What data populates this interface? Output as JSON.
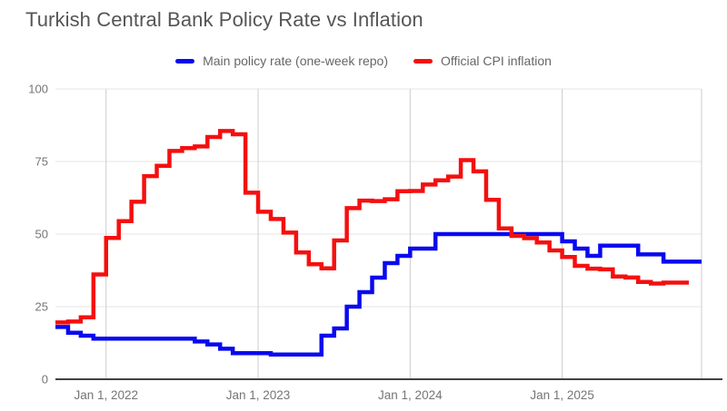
{
  "header": {
    "title": "Turkish Central Bank Policy Rate vs Inflation"
  },
  "colors": {
    "policy_line": "#0909f0",
    "cpi_line": "#f50f0f",
    "title_text": "#555555",
    "legend_text": "#666666",
    "axis_label_text": "#757575",
    "h_gridline": "#e6e6e6",
    "v_gridline": "#cccccc",
    "baseline": "#424242",
    "background": "#ffffff"
  },
  "chart_data": {
    "type": "line",
    "stepped": true,
    "title": "Turkish Central Bank Policy Rate vs Inflation",
    "xlabel": "",
    "ylabel": "",
    "grid": true,
    "legend_position": "top",
    "ylim": [
      0,
      100
    ],
    "y_ticks": [
      0,
      25,
      50,
      75,
      100
    ],
    "y_tick_labels": [
      "0",
      "25",
      "50",
      "75",
      "100"
    ],
    "x_tick_labels": [
      "Jan 1, 2022",
      "Jan 1, 2023",
      "Jan 1, 2024",
      "Jan 1, 2025"
    ],
    "x_tick_month_index": [
      4,
      16,
      28,
      40
    ],
    "x_unit": "month",
    "x": [
      "2021-09",
      "2021-10",
      "2021-11",
      "2021-12",
      "2022-01",
      "2022-02",
      "2022-03",
      "2022-04",
      "2022-05",
      "2022-06",
      "2022-07",
      "2022-08",
      "2022-09",
      "2022-10",
      "2022-11",
      "2022-12",
      "2023-01",
      "2023-02",
      "2023-03",
      "2023-04",
      "2023-05",
      "2023-06",
      "2023-07",
      "2023-08",
      "2023-09",
      "2023-10",
      "2023-11",
      "2023-12",
      "2024-01",
      "2024-02",
      "2024-03",
      "2024-04",
      "2024-05",
      "2024-06",
      "2024-07",
      "2024-08",
      "2024-09",
      "2024-10",
      "2024-11",
      "2024-12",
      "2025-01",
      "2025-02",
      "2025-03",
      "2025-04",
      "2025-05",
      "2025-06",
      "2025-07",
      "2025-08",
      "2025-09"
    ],
    "series": [
      {
        "name": "Main policy rate (one-week repo)",
        "color": "#0909f0",
        "values": [
          18,
          16,
          15,
          14,
          14,
          14,
          14,
          14,
          14,
          14,
          14,
          13,
          12,
          10.5,
          9,
          9,
          9,
          8.5,
          8.5,
          8.5,
          8.5,
          15,
          17.5,
          25,
          30,
          35,
          40,
          42.5,
          45,
          45,
          50,
          50,
          50,
          50,
          50,
          50,
          50,
          50,
          50,
          50,
          47.5,
          45,
          42.5,
          46,
          46,
          46,
          43,
          43,
          40.5
        ]
      },
      {
        "name": "Official CPI inflation",
        "color": "#f50f0f",
        "values": [
          19.58,
          19.89,
          21.31,
          36.08,
          48.69,
          54.44,
          61.14,
          69.97,
          73.5,
          78.62,
          79.6,
          80.21,
          83.45,
          85.51,
          84.39,
          64.27,
          57.68,
          55.18,
          50.51,
          43.68,
          39.59,
          38.21,
          47.83,
          58.94,
          61.53,
          61.36,
          61.98,
          64.77,
          64.86,
          67.07,
          68.5,
          69.8,
          75.45,
          71.6,
          61.78,
          51.97,
          49.38,
          48.58,
          47.09,
          44.38,
          42.12,
          39.05,
          38.1,
          37.86,
          35.41,
          35.05,
          33.52,
          32.95,
          33.29
        ]
      }
    ]
  }
}
